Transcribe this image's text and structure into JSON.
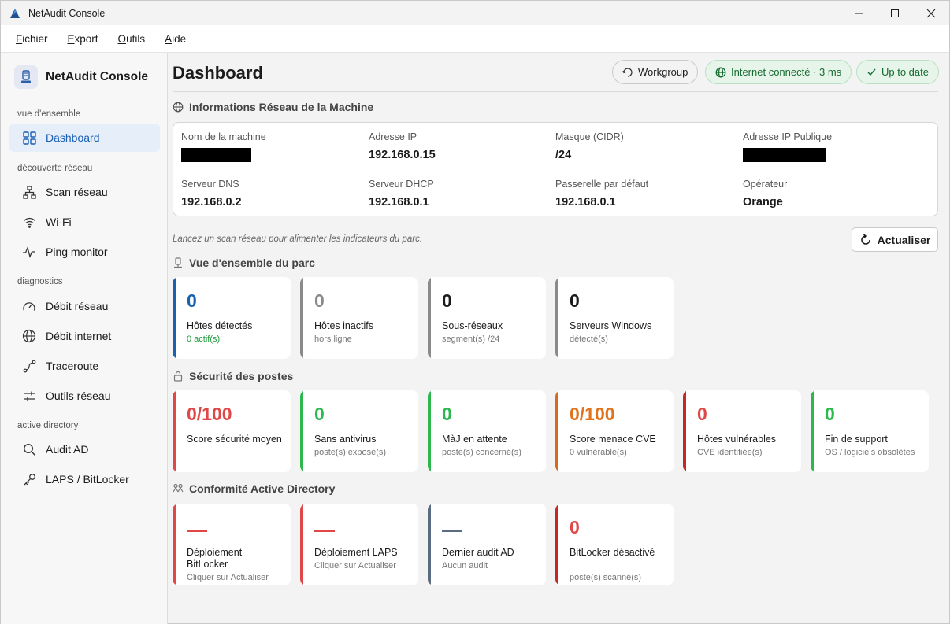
{
  "window": {
    "title": "NetAudit Console"
  },
  "menu": [
    {
      "pre": "",
      "u": "F",
      "post": "ichier"
    },
    {
      "pre": "",
      "u": "E",
      "post": "xport"
    },
    {
      "pre": "",
      "u": "O",
      "post": "utils"
    },
    {
      "pre": "",
      "u": "A",
      "post": "ide"
    }
  ],
  "sidebar": {
    "brand": "NetAudit Console",
    "sections": {
      "overview": "vue d'ensemble",
      "discovery": "découverte réseau",
      "diagnostics": "diagnostics",
      "ad": "active directory"
    },
    "items": [
      {
        "label": "Dashboard",
        "icon": "grid-icon"
      },
      {
        "label": "Scan réseau",
        "icon": "network-icon"
      },
      {
        "label": "Wi-Fi",
        "icon": "wifi-icon"
      },
      {
        "label": "Ping monitor",
        "icon": "pulse-icon"
      },
      {
        "label": "Débit réseau",
        "icon": "gauge-icon"
      },
      {
        "label": "Débit internet",
        "icon": "globe-icon"
      },
      {
        "label": "Traceroute",
        "icon": "route-icon"
      },
      {
        "label": "Outils réseau",
        "icon": "sliders-icon"
      },
      {
        "label": "Audit AD",
        "icon": "search-icon"
      },
      {
        "label": "LAPS / BitLocker",
        "icon": "key-icon"
      }
    ]
  },
  "header": {
    "title": "Dashboard",
    "workgroup": "Workgroup",
    "internet": "Internet connecté · 3 ms",
    "update": "Up to date"
  },
  "network": {
    "title": "Informations Réseau de la Machine",
    "fields": {
      "hostname_label": "Nom de la machine",
      "ip_label": "Adresse IP",
      "ip_value": "192.168.0.15",
      "mask_label": "Masque (CIDR)",
      "mask_value": "/24",
      "public_ip_label": "Adresse IP Publique",
      "dns_label": "Serveur DNS",
      "dns_value": "192.168.0.2",
      "dhcp_label": "Serveur DHCP",
      "dhcp_value": "192.168.0.1",
      "gateway_label": "Passerelle par défaut",
      "gateway_value": "192.168.0.1",
      "operator_label": "Opérateur",
      "operator_value": "Orange"
    }
  },
  "hint": "Lancez un scan réseau pour alimenter les indicateurs du parc.",
  "refresh_label": "Actualiser",
  "parc": {
    "title": "Vue d'ensemble du parc",
    "cards": [
      {
        "value": "0",
        "title": "Hôtes détectés",
        "sub": "0 actif(s)",
        "bar": "#1a62b0",
        "vcolor": "#1a62b0",
        "scolor": "#1e9b3c"
      },
      {
        "value": "0",
        "title": "Hôtes inactifs",
        "sub": "hors ligne",
        "bar": "#8a8a8a",
        "vcolor": "#8a8a8a",
        "scolor": "#777777"
      },
      {
        "value": "0",
        "title": "Sous-réseaux",
        "sub": "segment(s) /24",
        "bar": "#8a8a8a",
        "vcolor": "#1b1b1b",
        "scolor": "#777777"
      },
      {
        "value": "0",
        "title": "Serveurs Windows",
        "sub": "détecté(s)",
        "bar": "#8a8a8a",
        "vcolor": "#1b1b1b",
        "scolor": "#777777"
      }
    ]
  },
  "security": {
    "title": "Sécurité des postes",
    "cards": [
      {
        "value": "0/100",
        "title": "Score sécurité moyen",
        "sub": "",
        "bar": "#e04848",
        "vcolor": "#e04848"
      },
      {
        "value": "0",
        "title": "Sans antivirus",
        "sub": "poste(s) exposé(s)",
        "bar": "#2db84d",
        "vcolor": "#2db84d"
      },
      {
        "value": "0",
        "title": "MàJ en attente",
        "sub": "poste(s) concerné(s)",
        "bar": "#2db84d",
        "vcolor": "#2db84d"
      },
      {
        "value": "0/100",
        "title": "Score menace CVE",
        "sub": "0 vulnérable(s)",
        "bar": "#d9691c",
        "vcolor": "#e0731c"
      },
      {
        "value": "0",
        "title": "Hôtes vulnérables",
        "sub": "CVE identifiée(s)",
        "bar": "#c62828",
        "vcolor": "#e04848"
      },
      {
        "value": "0",
        "title": "Fin de support",
        "sub": "OS / logiciels obsolètes",
        "bar": "#2db84d",
        "vcolor": "#2db84d"
      }
    ]
  },
  "ad": {
    "title": "Conformité Active Directory",
    "cards": [
      {
        "value": "—",
        "title": "Déploiement BitLocker",
        "sub": "Cliquer sur Actualiser",
        "bar": "#e04848",
        "vcolor": "#e04848"
      },
      {
        "value": "—",
        "title": "Déploiement LAPS",
        "sub": "Cliquer sur Actualiser",
        "bar": "#e04848",
        "vcolor": "#e04848"
      },
      {
        "value": "—",
        "title": "Dernier audit AD",
        "sub": "Aucun audit",
        "bar": "#5b6b82",
        "vcolor": "#5b6b82"
      },
      {
        "value": "0",
        "title": "BitLocker désactivé",
        "sub": "poste(s) scanné(s)",
        "bar": "#c62828",
        "vcolor": "#e04848"
      }
    ]
  }
}
